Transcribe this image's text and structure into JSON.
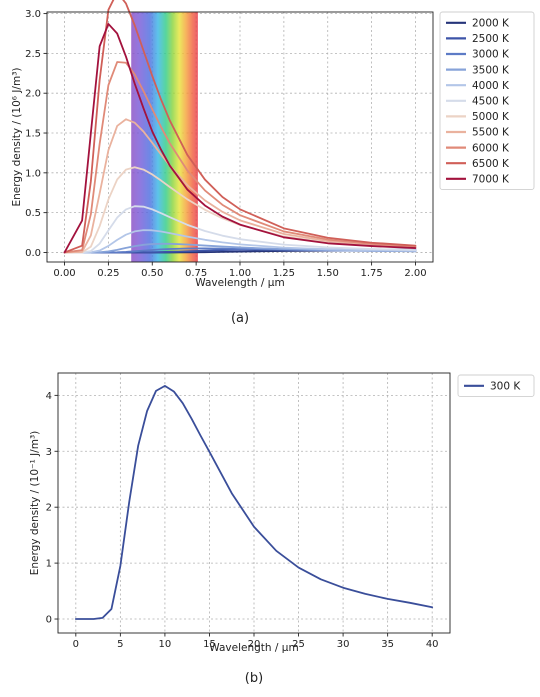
{
  "chart_data": [
    {
      "type": "line",
      "caption": "(a)",
      "xlabel": "Wavelength / μm",
      "ylabel": "Energy density / (10⁶ J/m³)",
      "xlim": [
        -0.1,
        2.1
      ],
      "ylim": [
        -0.12,
        3.02
      ],
      "xticks": [
        0.0,
        0.25,
        0.5,
        0.75,
        1.0,
        1.25,
        1.5,
        1.75,
        2.0
      ],
      "xtick_labels": [
        "0.00",
        "0.25",
        "0.50",
        "0.75",
        "1.00",
        "1.25",
        "1.50",
        "1.75",
        "2.00"
      ],
      "yticks": [
        0.0,
        0.5,
        1.0,
        1.5,
        2.0,
        2.5,
        3.0
      ],
      "ytick_labels": [
        "0.0",
        "0.5",
        "1.0",
        "1.5",
        "2.0",
        "2.5",
        "3.0"
      ],
      "grid": true,
      "legend": "outside-right",
      "visible_spectrum_band": [
        0.38,
        0.76
      ],
      "x": [
        0.0,
        0.1,
        0.15,
        0.2,
        0.25,
        0.3,
        0.35,
        0.4,
        0.45,
        0.5,
        0.55,
        0.6,
        0.7,
        0.8,
        0.9,
        1.0,
        1.25,
        1.5,
        1.75,
        2.0
      ],
      "series": [
        {
          "name": "2000 K",
          "color": "#26357a",
          "values": [
            0,
            0,
            0,
            0,
            0,
            0,
            0,
            0,
            0,
            0,
            0.0001,
            0.0002,
            0.0012,
            0.0034,
            0.0069,
            0.0108,
            0.0192,
            0.0235,
            0.0246,
            0.0237
          ]
        },
        {
          "name": "2500 K",
          "color": "#3d54a8",
          "values": [
            0,
            0,
            0,
            0,
            0,
            0,
            0.0001,
            0.0004,
            0.0012,
            0.0027,
            0.0049,
            0.0077,
            0.0148,
            0.0224,
            0.0289,
            0.0339,
            0.0396,
            0.0397,
            0.0372,
            0.0336
          ]
        },
        {
          "name": "3000 K",
          "color": "#5d7bc6",
          "values": [
            0,
            0,
            0,
            0,
            0.0004,
            0.0024,
            0.007,
            0.0142,
            0.0227,
            0.0311,
            0.0383,
            0.0437,
            0.0496,
            0.0502,
            0.0477,
            0.0437,
            0.0339,
            0.0258,
            0.0198,
            0.0153
          ]
        },
        {
          "name": "3500 K",
          "color": "#87a3d9",
          "values": [
            0,
            0,
            0,
            0.0023,
            0.0127,
            0.0328,
            0.057,
            0.0792,
            0.0958,
            0.1056,
            0.1095,
            0.1087,
            0.0996,
            0.0867,
            0.0739,
            0.0626,
            0.0417,
            0.029,
            0.021,
            0.0157
          ]
        },
        {
          "name": "4000 K",
          "color": "#b3c6e8",
          "values": [
            0,
            0,
            0.0019,
            0.0237,
            0.0817,
            0.1577,
            0.2231,
            0.2641,
            0.2803,
            0.2778,
            0.2635,
            0.2431,
            0.1988,
            0.1588,
            0.1265,
            0.1014,
            0.0608,
            0.0393,
            0.0271,
            0.0196
          ]
        },
        {
          "name": "4500 K",
          "color": "#d5dcea",
          "values": [
            0,
            0.0001,
            0.0166,
            0.1103,
            0.2774,
            0.4378,
            0.5403,
            0.5809,
            0.575,
            0.541,
            0.4935,
            0.4424,
            0.3465,
            0.2691,
            0.2106,
            0.1668,
            0.0978,
            0.0626,
            0.0428,
            0.0308
          ]
        },
        {
          "name": "5000 K",
          "color": "#ecd3c5",
          "values": [
            0,
            0.0013,
            0.0728,
            0.3299,
            0.6659,
            0.9159,
            1.0404,
            1.0702,
            1.0409,
            0.9795,
            0.9031,
            0.8222,
            0.6675,
            0.5361,
            0.4294,
            0.345,
            0.201,
            0.1259,
            0.0847,
            0.0601
          ]
        },
        {
          "name": "5500 K",
          "color": "#eab29e",
          "values": [
            0,
            0.0074,
            0.214,
            0.7416,
            1.2843,
            1.5886,
            1.673,
            1.6296,
            1.5182,
            1.3772,
            1.2301,
            1.0902,
            0.8453,
            0.6539,
            0.5103,
            0.4032,
            0.2319,
            0.1435,
            0.0958,
            0.0679
          ]
        },
        {
          "name": "6000 K",
          "color": "#e08a78",
          "values": [
            0,
            0.029,
            0.4803,
            1.3634,
            2.1015,
            2.3916,
            2.383,
            2.2356,
            2.0264,
            1.7983,
            1.5754,
            1.3706,
            1.0296,
            0.7787,
            0.5979,
            0.4681,
            0.2639,
            0.162,
            0.1075,
            0.0758
          ]
        },
        {
          "name": "6500 K",
          "color": "#d05f58",
          "values": [
            0,
            0.0849,
            0.8946,
            2.1646,
            3.0473,
            3.2679,
            3.1276,
            2.8521,
            2.5351,
            2.217,
            1.9207,
            1.6562,
            1.2248,
            0.9153,
            0.6968,
            0.5418,
            0.3026,
            0.1848,
            0.1222,
            0.086
          ]
        },
        {
          "name": "7000 K",
          "color": "#a3123d",
          "values": [
            0,
            0.4,
            1.5,
            2.59,
            2.87,
            2.75,
            2.46,
            2.12,
            1.81,
            1.52,
            1.29,
            1.09,
            0.79,
            0.59,
            0.45,
            0.35,
            0.19,
            0.115,
            0.08,
            0.055
          ]
        }
      ]
    },
    {
      "type": "line",
      "caption": "(b)",
      "xlabel": "Wavelength / μm",
      "ylabel": "Energy density / (10⁻¹ J/m³)",
      "xlim": [
        -2,
        42
      ],
      "ylim": [
        -0.25,
        4.4
      ],
      "xticks": [
        0,
        5,
        10,
        15,
        20,
        25,
        30,
        35,
        40
      ],
      "xtick_labels": [
        "0",
        "5",
        "10",
        "15",
        "20",
        "25",
        "30",
        "35",
        "40"
      ],
      "yticks": [
        0,
        1,
        2,
        3,
        4
      ],
      "ytick_labels": [
        "0",
        "1",
        "2",
        "3",
        "4"
      ],
      "grid": true,
      "legend": "outside-right",
      "x": [
        0,
        2,
        3,
        4,
        5,
        6,
        7,
        8,
        9,
        10,
        11,
        12,
        13,
        14,
        15,
        17.5,
        20,
        22.5,
        25,
        27.5,
        30,
        32.5,
        35,
        37.5,
        40
      ],
      "series": [
        {
          "name": "300 K",
          "color": "#3a4e9a",
          "values": [
            0,
            0,
            0.02,
            0.18,
            0.95,
            2.1,
            3.1,
            3.72,
            4.08,
            4.17,
            4.07,
            3.86,
            3.58,
            3.28,
            2.99,
            2.25,
            1.65,
            1.22,
            0.92,
            0.71,
            0.56,
            0.45,
            0.36,
            0.29,
            0.21
          ]
        }
      ]
    }
  ]
}
